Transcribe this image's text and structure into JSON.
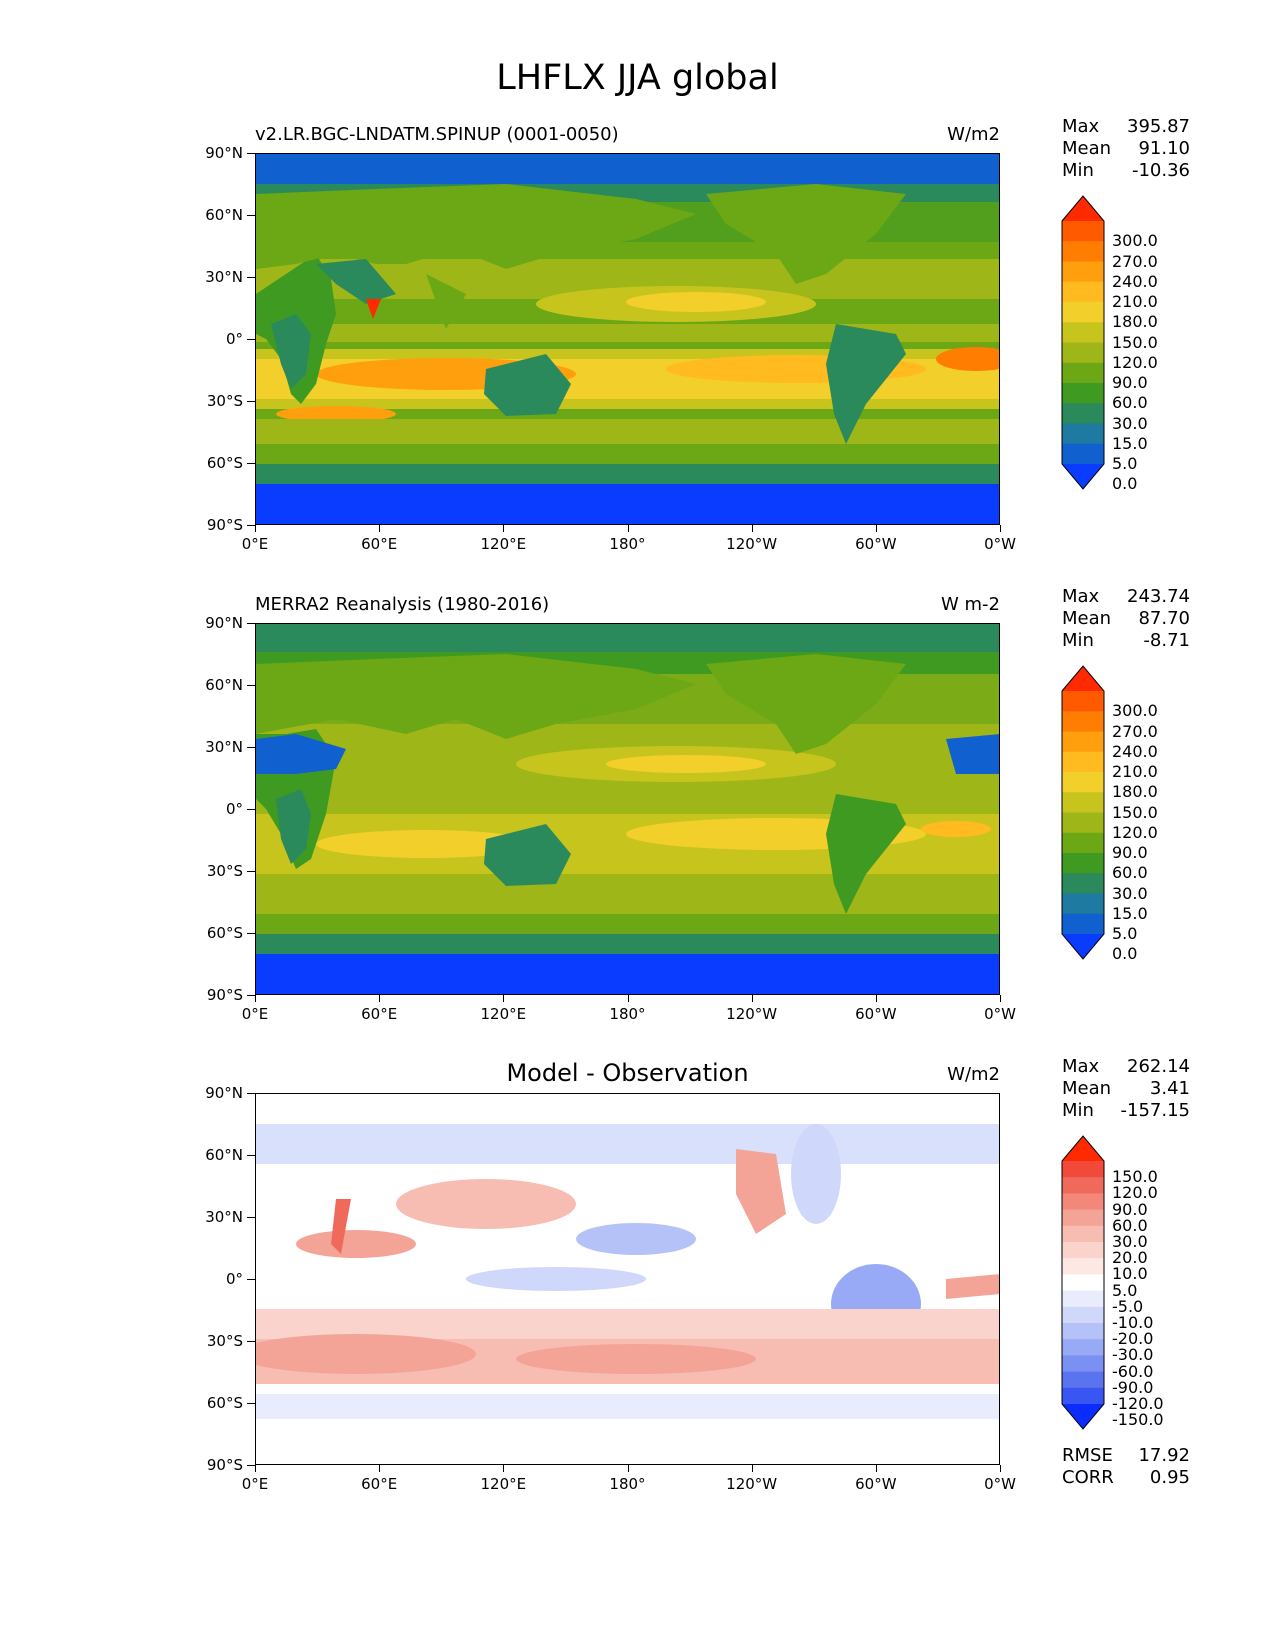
{
  "figure": {
    "title": "LHFLX JJA global"
  },
  "axes": {
    "lat_ticks": [
      "90°N",
      "60°N",
      "30°N",
      "0°",
      "30°S",
      "60°S",
      "90°S"
    ],
    "lon_ticks": [
      "0°E",
      "60°E",
      "120°E",
      "180°",
      "120°W",
      "60°W",
      "0°W"
    ]
  },
  "panels": [
    {
      "title": "v2.LR.BGC-LNDATM.SPINUP (0001-0050)",
      "units": "W/m2",
      "stats": [
        {
          "label": "Max",
          "value": "395.87"
        },
        {
          "label": "Mean",
          "value": "91.10"
        },
        {
          "label": "Min",
          "value": "-10.36"
        }
      ],
      "colorbar_labels": [
        "300.0",
        "270.0",
        "240.0",
        "210.0",
        "180.0",
        "150.0",
        "120.0",
        "90.0",
        "60.0",
        "30.0",
        "15.0",
        "5.0",
        "0.0"
      ],
      "colors": [
        "#ff2a00",
        "#ff5a00",
        "#ff7d00",
        "#ff9f0e",
        "#ffbb20",
        "#f2cf2a",
        "#c8c41e",
        "#9fb618",
        "#6ca715",
        "#3f9a22",
        "#2a8a5c",
        "#1e7aa0",
        "#1060d0",
        "#0a3cff"
      ]
    },
    {
      "title": "MERRA2 Reanalysis (1980-2016)",
      "units": "W m-2",
      "stats": [
        {
          "label": "Max",
          "value": "243.74"
        },
        {
          "label": "Mean",
          "value": "87.70"
        },
        {
          "label": "Min",
          "value": "-8.71"
        }
      ],
      "colorbar_labels": [
        "300.0",
        "270.0",
        "240.0",
        "210.0",
        "180.0",
        "150.0",
        "120.0",
        "90.0",
        "60.0",
        "30.0",
        "15.0",
        "5.0",
        "0.0"
      ],
      "colors": [
        "#ff2a00",
        "#ff5a00",
        "#ff7d00",
        "#ff9f0e",
        "#ffbb20",
        "#f2cf2a",
        "#c8c41e",
        "#9fb618",
        "#6ca715",
        "#3f9a22",
        "#2a8a5c",
        "#1e7aa0",
        "#1060d0",
        "#0a3cff"
      ]
    },
    {
      "title": "Model - Observation",
      "units": "W/m2",
      "stats": [
        {
          "label": "Max",
          "value": "262.14"
        },
        {
          "label": "Mean",
          "value": "3.41"
        },
        {
          "label": "Min",
          "value": "-157.15"
        }
      ],
      "colorbar_labels": [
        "150.0",
        "120.0",
        "90.0",
        "60.0",
        "30.0",
        "20.0",
        "10.0",
        "5.0",
        "-5.0",
        "-10.0",
        "-20.0",
        "-30.0",
        "-60.0",
        "-90.0",
        "-120.0",
        "-150.0"
      ],
      "colors": [
        "#ff2a00",
        "#f24a3a",
        "#f06a5c",
        "#f2877a",
        "#f4a497",
        "#f7bdb3",
        "#fad3cc",
        "#fde8e4",
        "#ffffff",
        "#e8ecfd",
        "#cfd8fb",
        "#b5c2f8",
        "#98aaf5",
        "#7a90f2",
        "#5a74f0",
        "#3a56f2",
        "#0a2cff"
      ],
      "summary": [
        {
          "label": "RMSE",
          "value": "17.92"
        },
        {
          "label": "CORR",
          "value": "0.95"
        }
      ]
    }
  ]
}
